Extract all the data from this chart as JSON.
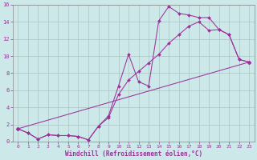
{
  "xlabel": "Windchill (Refroidissement éolien,°C)",
  "background_color": "#cce8e8",
  "grid_color": "#b0c8c8",
  "line_color": "#993399",
  "xlim": [
    -0.5,
    23.5
  ],
  "ylim": [
    0,
    16
  ],
  "xticks": [
    0,
    1,
    2,
    3,
    4,
    5,
    6,
    7,
    8,
    9,
    10,
    11,
    12,
    13,
    14,
    15,
    16,
    17,
    18,
    19,
    20,
    21,
    22,
    23
  ],
  "yticks": [
    0,
    2,
    4,
    6,
    8,
    10,
    12,
    14,
    16
  ],
  "series1_x": [
    0,
    1,
    2,
    3,
    4,
    5,
    6,
    7,
    8,
    9,
    10,
    11,
    12,
    13,
    14,
    15,
    16,
    17,
    18,
    19,
    20,
    21,
    22,
    23
  ],
  "series1_y": [
    1.5,
    1.0,
    0.3,
    0.8,
    0.7,
    0.7,
    0.6,
    0.2,
    1.8,
    3.0,
    6.5,
    10.2,
    7.0,
    6.5,
    14.1,
    15.8,
    15.0,
    14.8,
    14.5,
    14.5,
    13.1,
    12.5,
    9.6,
    9.3
  ],
  "series2_x": [
    0,
    1,
    2,
    3,
    4,
    5,
    6,
    7,
    8,
    9,
    10,
    11,
    12,
    13,
    14,
    15,
    16,
    17,
    18,
    19,
    20,
    21,
    22,
    23
  ],
  "series2_y": [
    1.5,
    1.0,
    0.3,
    0.8,
    0.7,
    0.7,
    0.6,
    0.2,
    1.8,
    2.8,
    5.5,
    7.2,
    8.2,
    9.2,
    10.2,
    11.5,
    12.5,
    13.5,
    14.0,
    13.0,
    13.1,
    12.5,
    9.6,
    9.3
  ],
  "series3_x": [
    0,
    23
  ],
  "series3_y": [
    1.5,
    9.3
  ]
}
